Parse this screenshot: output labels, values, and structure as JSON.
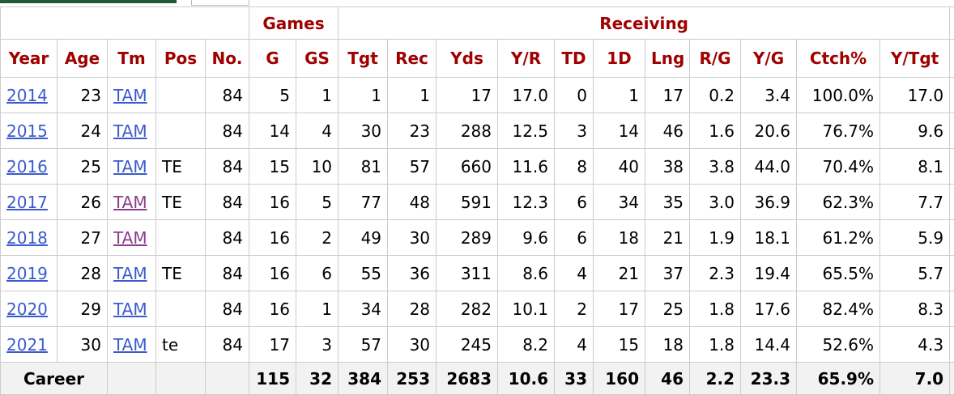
{
  "table": {
    "header_groups": [
      "Games",
      "Receiving"
    ],
    "columns": [
      "Year",
      "Age",
      "Tm",
      "Pos",
      "No.",
      "G",
      "GS",
      "Tgt",
      "Rec",
      "Yds",
      "Y/R",
      "TD",
      "1D",
      "Lng",
      "R/G",
      "Y/G",
      "Ctch%",
      "Y/Tgt"
    ],
    "rows": [
      [
        "2014",
        "23",
        "TAM",
        null,
        "84",
        "5",
        "1",
        "1",
        "1",
        "17",
        "17.0",
        "0",
        "1",
        "17",
        "0.2",
        "3.4",
        "100.0%",
        "17.0"
      ],
      [
        "2015",
        "24",
        "TAM",
        null,
        "84",
        "14",
        "4",
        "30",
        "23",
        "288",
        "12.5",
        "3",
        "14",
        "46",
        "1.6",
        "20.6",
        "76.7%",
        "9.6"
      ],
      [
        "2016",
        "25",
        "TAM",
        "TE",
        "84",
        "15",
        "10",
        "81",
        "57",
        "660",
        "11.6",
        "8",
        "40",
        "38",
        "3.8",
        "44.0",
        "70.4%",
        "8.1"
      ],
      [
        "2017",
        "26",
        "TAM",
        "TE",
        "84",
        "16",
        "5",
        "77",
        "48",
        "591",
        "12.3",
        "6",
        "34",
        "35",
        "3.0",
        "36.9",
        "62.3%",
        "7.7"
      ],
      [
        "2018",
        "27",
        "TAM",
        null,
        "84",
        "16",
        "2",
        "49",
        "30",
        "289",
        "9.6",
        "6",
        "18",
        "21",
        "1.9",
        "18.1",
        "61.2%",
        "5.9"
      ],
      [
        "2019",
        "28",
        "TAM",
        "TE",
        "84",
        "16",
        "6",
        "55",
        "36",
        "311",
        "8.6",
        "4",
        "21",
        "37",
        "2.3",
        "19.4",
        "65.5%",
        "5.7"
      ],
      [
        "2020",
        "29",
        "TAM",
        null,
        "84",
        "16",
        "1",
        "34",
        "28",
        "282",
        "10.1",
        "2",
        "17",
        "25",
        "1.8",
        "17.6",
        "82.4%",
        "8.3"
      ],
      [
        "2021",
        "30",
        "TAM",
        "te",
        "84",
        "17",
        "3",
        "57",
        "30",
        "245",
        "8.2",
        "4",
        "15",
        "18",
        "1.8",
        "14.4",
        "52.6%",
        "4.3"
      ]
    ],
    "visited_team_rows": [
      3,
      4
    ],
    "career": {
      "label": "Career",
      "values": [
        "115",
        "32",
        "384",
        "253",
        "2683",
        "10.6",
        "33",
        "160",
        "46",
        "2.2",
        "23.3",
        "65.9%",
        "7.0"
      ]
    }
  }
}
